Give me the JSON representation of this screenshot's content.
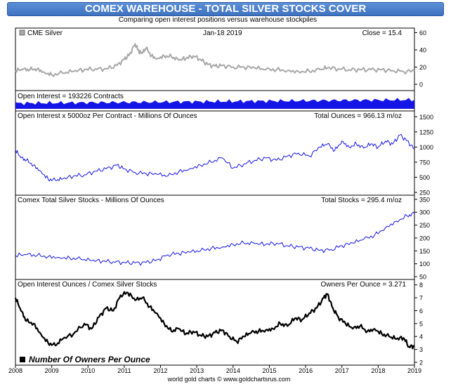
{
  "title": "COMEX WAREHOUSE - TOTAL SILVER STOCKS COVER",
  "subtitle": "Comparing open interest positions versus warehouse stockpiles",
  "footer": "world gold charts © www.goldchartsrus.com",
  "colors": {
    "header": "#4a7fcc",
    "silver": "#a8a8a8",
    "blue": "#1515e6",
    "black": "#000000"
  },
  "chart_data": [
    {
      "type": "line",
      "panel": "price",
      "legend": "CME Silver",
      "date_label": "Jan-18  2019",
      "stat_label": "Close = 15.4",
      "ylim": [
        -4,
        62
      ],
      "yticks": [
        "60",
        "40",
        "20",
        "0"
      ],
      "x": [
        2008.0,
        2008.2,
        2008.4,
        2008.6,
        2008.8,
        2009.0,
        2009.3,
        2009.6,
        2009.9,
        2010.2,
        2010.5,
        2010.8,
        2011.0,
        2011.15,
        2011.3,
        2011.4,
        2011.5,
        2011.6,
        2011.75,
        2011.9,
        2012.1,
        2012.3,
        2012.5,
        2012.7,
        2012.9,
        2013.1,
        2013.3,
        2013.5,
        2013.7,
        2014.0,
        2014.3,
        2014.6,
        2014.9,
        2015.2,
        2015.5,
        2015.8,
        2016.1,
        2016.4,
        2016.6,
        2016.9,
        2017.2,
        2017.5,
        2017.8,
        2018.1,
        2018.4,
        2018.7,
        2019.0
      ],
      "values": [
        16,
        17,
        17,
        18,
        14,
        11,
        13,
        15,
        17,
        18,
        18,
        22,
        29,
        35,
        47,
        38,
        36,
        42,
        33,
        30,
        33,
        32,
        28,
        30,
        33,
        29,
        23,
        21,
        22,
        20,
        20,
        19,
        17,
        17,
        16,
        15,
        15,
        17,
        19,
        18,
        17,
        17,
        17,
        17,
        16,
        15,
        15.4
      ]
    },
    {
      "type": "area",
      "panel": "open_interest",
      "label": "Open Interest = 193226 Contracts"
    },
    {
      "type": "line",
      "panel": "oi_ounces",
      "label": "Open Interest x 5000oz Per Contract - Millions Of Ounces",
      "stat_label": "Total Ounces = 966.13 m/oz",
      "ylim": [
        250,
        1550
      ],
      "yticks": [
        "1500",
        "1250",
        "1000",
        "750",
        "500",
        "250"
      ],
      "x": [
        2008.0,
        2008.15,
        2008.3,
        2008.5,
        2008.7,
        2008.9,
        2009.1,
        2009.3,
        2009.6,
        2009.9,
        2010.2,
        2010.5,
        2010.8,
        2011.0,
        2011.3,
        2011.6,
        2011.9,
        2012.2,
        2012.5,
        2012.8,
        2013.1,
        2013.4,
        2013.7,
        2014.0,
        2014.3,
        2014.6,
        2014.9,
        2015.2,
        2015.5,
        2015.8,
        2016.1,
        2016.4,
        2016.6,
        2016.8,
        2017.0,
        2017.2,
        2017.4,
        2017.6,
        2017.8,
        2018.0,
        2018.2,
        2018.4,
        2018.6,
        2018.8,
        2019.0
      ],
      "values": [
        950,
        820,
        780,
        700,
        600,
        470,
        450,
        470,
        520,
        540,
        600,
        640,
        700,
        640,
        580,
        560,
        550,
        520,
        590,
        640,
        700,
        750,
        820,
        650,
        720,
        780,
        820,
        780,
        850,
        900,
        850,
        1000,
        1050,
        940,
        1100,
        1000,
        1050,
        980,
        1050,
        1000,
        1100,
        1050,
        1200,
        1100,
        966
      ]
    },
    {
      "type": "line",
      "panel": "stocks",
      "label": "Comex Total Silver Stocks - Millions Of Ounces",
      "stat_label": "Total Stocks = 295.4 m/oz",
      "ylim": [
        50,
        355
      ],
      "yticks": [
        "350",
        "300",
        "250",
        "200",
        "150",
        "100",
        "50"
      ],
      "x": [
        2008.0,
        2008.3,
        2008.6,
        2008.9,
        2009.2,
        2009.5,
        2009.8,
        2010.1,
        2010.4,
        2010.7,
        2011.0,
        2011.3,
        2011.6,
        2011.9,
        2012.2,
        2012.5,
        2012.8,
        2013.1,
        2013.4,
        2013.7,
        2014.0,
        2014.3,
        2014.6,
        2014.9,
        2015.2,
        2015.5,
        2015.8,
        2016.1,
        2016.4,
        2016.7,
        2017.0,
        2017.3,
        2017.6,
        2017.9,
        2018.2,
        2018.5,
        2018.8,
        2019.0
      ],
      "values": [
        132,
        135,
        132,
        128,
        125,
        122,
        118,
        112,
        110,
        108,
        105,
        103,
        105,
        115,
        135,
        140,
        145,
        150,
        160,
        165,
        175,
        180,
        178,
        175,
        180,
        170,
        165,
        160,
        152,
        155,
        170,
        180,
        195,
        210,
        240,
        265,
        285,
        295
      ]
    },
    {
      "type": "line",
      "panel": "owners",
      "label": "Open Interest Ounces / Comex Silver Stocks",
      "stat_label": "Owners Per Ounce = 3.271",
      "legend": "Number Of Owners Per Ounce",
      "ylim": [
        2,
        8.2
      ],
      "yticks": [
        "8",
        "7",
        "6",
        "5",
        "4",
        "3",
        "2"
      ],
      "xticks": [
        "2008",
        "2009",
        "2010",
        "2011",
        "2012",
        "2013",
        "2014",
        "2015",
        "2016",
        "2017",
        "2018",
        "2019"
      ],
      "x": [
        2008.0,
        2008.15,
        2008.3,
        2008.5,
        2008.7,
        2008.9,
        2009.1,
        2009.3,
        2009.6,
        2009.9,
        2010.1,
        2010.3,
        2010.5,
        2010.7,
        2010.9,
        2011.1,
        2011.3,
        2011.5,
        2011.7,
        2011.9,
        2012.1,
        2012.3,
        2012.5,
        2012.7,
        2012.9,
        2013.1,
        2013.3,
        2013.5,
        2013.7,
        2013.9,
        2014.1,
        2014.3,
        2014.5,
        2014.7,
        2014.9,
        2015.1,
        2015.3,
        2015.5,
        2015.7,
        2015.9,
        2016.1,
        2016.3,
        2016.5,
        2016.6,
        2016.75,
        2016.9,
        2017.1,
        2017.3,
        2017.5,
        2017.7,
        2017.9,
        2018.1,
        2018.3,
        2018.5,
        2018.7,
        2018.85,
        2019.0
      ],
      "values": [
        7.0,
        6.0,
        5.2,
        5.0,
        4.2,
        3.5,
        3.3,
        3.8,
        4.2,
        5.0,
        4.6,
        5.5,
        6.2,
        6.0,
        7.2,
        7.4,
        6.8,
        7.0,
        6.3,
        5.8,
        5.0,
        4.4,
        4.6,
        4.2,
        4.4,
        4.1,
        4.0,
        4.3,
        4.5,
        4.0,
        3.6,
        4.0,
        4.3,
        4.4,
        4.5,
        4.6,
        5.0,
        4.8,
        5.4,
        5.3,
        5.8,
        6.2,
        7.0,
        7.3,
        6.2,
        5.5,
        5.0,
        4.6,
        4.8,
        4.4,
        4.6,
        4.2,
        4.0,
        3.8,
        3.9,
        3.2,
        3.27
      ]
    }
  ]
}
